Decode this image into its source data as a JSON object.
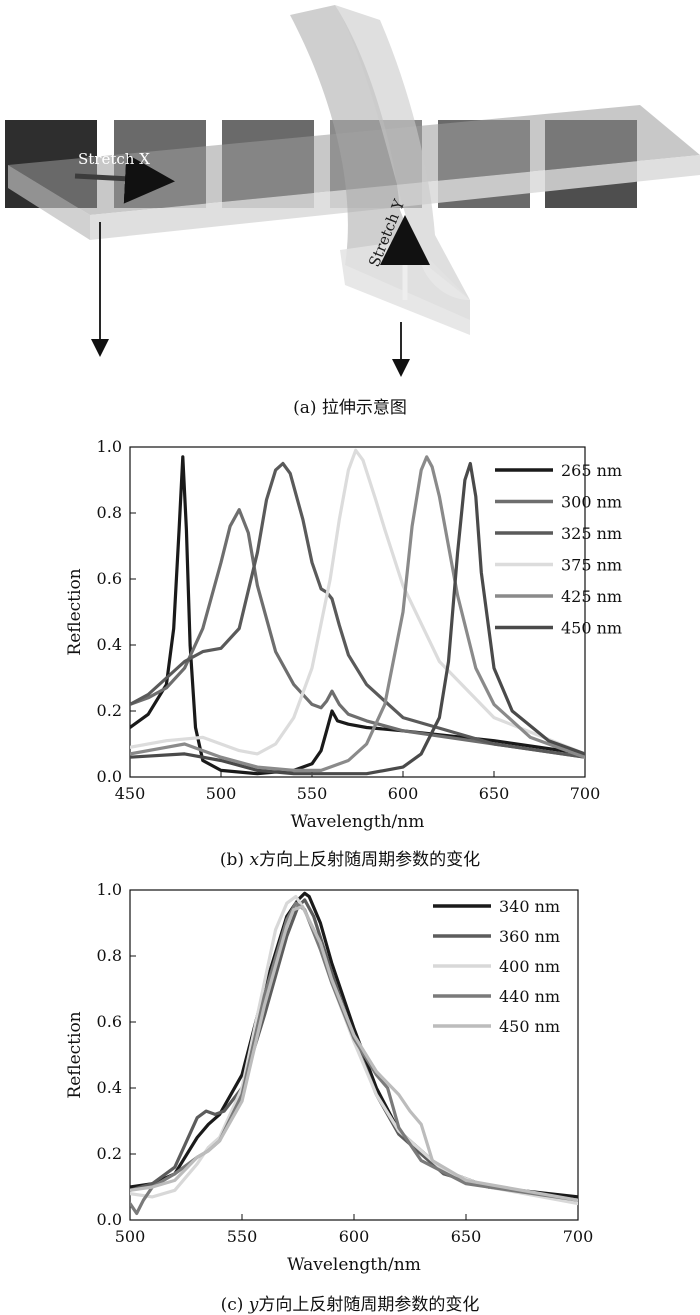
{
  "figure_a": {
    "label_x": "Stretch X",
    "label_y": "Stretch Y",
    "caption": "(a) 拉伸示意图"
  },
  "caption_b": {
    "prefix": "(b) ",
    "var": "x",
    "rest": "方向上反射随周期参数的变化"
  },
  "caption_c": {
    "prefix": "(c) ",
    "var": "y",
    "rest": "方向上反射随周期参数的变化"
  },
  "chart_data": [
    {
      "type": "line",
      "xlabel": "Wavelength/nm",
      "ylabel": "Reflection",
      "xlim": [
        450,
        700
      ],
      "ylim": [
        0,
        1.0
      ],
      "xticks": [
        450,
        500,
        550,
        600,
        650,
        700
      ],
      "yticks": [
        0.0,
        0.2,
        0.4,
        0.6,
        0.8,
        1.0
      ],
      "legend_position": "top-right",
      "series": [
        {
          "name": "265 nm",
          "color": "#1a1a1a",
          "x": [
            450,
            460,
            470,
            474,
            477,
            479,
            481,
            483,
            486,
            490,
            500,
            520,
            540,
            550,
            555,
            558,
            561,
            564,
            570,
            580,
            600,
            650,
            700
          ],
          "y": [
            0.15,
            0.19,
            0.28,
            0.45,
            0.75,
            0.97,
            0.75,
            0.4,
            0.15,
            0.05,
            0.02,
            0.01,
            0.02,
            0.04,
            0.08,
            0.14,
            0.2,
            0.17,
            0.16,
            0.15,
            0.14,
            0.11,
            0.07
          ]
        },
        {
          "name": "300 nm",
          "color": "#6e6e6e",
          "x": [
            450,
            460,
            470,
            480,
            490,
            500,
            505,
            510,
            515,
            520,
            530,
            540,
            550,
            555,
            558,
            561,
            565,
            570,
            580,
            600,
            650,
            700
          ],
          "y": [
            0.22,
            0.24,
            0.27,
            0.33,
            0.45,
            0.65,
            0.76,
            0.81,
            0.74,
            0.58,
            0.38,
            0.28,
            0.22,
            0.21,
            0.23,
            0.26,
            0.22,
            0.19,
            0.17,
            0.14,
            0.1,
            0.06
          ]
        },
        {
          "name": "325 nm",
          "color": "#5a5a5a",
          "x": [
            450,
            460,
            470,
            480,
            490,
            500,
            510,
            520,
            525,
            530,
            534,
            538,
            545,
            550,
            555,
            558,
            561,
            565,
            570,
            580,
            600,
            650,
            700
          ],
          "y": [
            0.22,
            0.25,
            0.3,
            0.35,
            0.38,
            0.39,
            0.45,
            0.68,
            0.84,
            0.93,
            0.95,
            0.92,
            0.78,
            0.65,
            0.57,
            0.56,
            0.54,
            0.46,
            0.37,
            0.28,
            0.18,
            0.1,
            0.06
          ]
        },
        {
          "name": "375 nm",
          "color": "#dcdcdc",
          "x": [
            450,
            470,
            490,
            500,
            510,
            520,
            530,
            540,
            550,
            560,
            565,
            570,
            574,
            578,
            585,
            590,
            600,
            620,
            650,
            700
          ],
          "y": [
            0.09,
            0.11,
            0.12,
            0.1,
            0.08,
            0.07,
            0.1,
            0.18,
            0.33,
            0.6,
            0.78,
            0.93,
            0.99,
            0.96,
            0.84,
            0.75,
            0.58,
            0.35,
            0.18,
            0.07
          ]
        },
        {
          "name": "425 nm",
          "color": "#8a8a8a",
          "x": [
            450,
            470,
            480,
            500,
            520,
            540,
            555,
            560,
            570,
            580,
            590,
            600,
            605,
            610,
            613,
            616,
            620,
            630,
            640,
            650,
            670,
            700
          ],
          "y": [
            0.07,
            0.09,
            0.1,
            0.06,
            0.03,
            0.02,
            0.02,
            0.03,
            0.05,
            0.1,
            0.22,
            0.5,
            0.76,
            0.93,
            0.97,
            0.94,
            0.85,
            0.55,
            0.33,
            0.22,
            0.12,
            0.06
          ]
        },
        {
          "name": "450 nm",
          "color": "#4a4a4a",
          "x": [
            450,
            480,
            500,
            520,
            540,
            560,
            580,
            600,
            610,
            620,
            625,
            630,
            634,
            637,
            640,
            643,
            650,
            660,
            680,
            700
          ],
          "y": [
            0.06,
            0.07,
            0.05,
            0.02,
            0.01,
            0.01,
            0.01,
            0.03,
            0.07,
            0.18,
            0.35,
            0.68,
            0.9,
            0.95,
            0.85,
            0.62,
            0.33,
            0.2,
            0.11,
            0.07
          ]
        }
      ]
    },
    {
      "type": "line",
      "xlabel": "Wavelength/nm",
      "ylabel": "Reflection",
      "xlim": [
        500,
        700
      ],
      "ylim": [
        0,
        1.0
      ],
      "xticks": [
        500,
        550,
        600,
        650,
        700
      ],
      "yticks": [
        0.0,
        0.2,
        0.4,
        0.6,
        0.8,
        1.0
      ],
      "legend_position": "top-right",
      "series": [
        {
          "name": "340 nm",
          "color": "#1a1a1a",
          "x": [
            500,
            510,
            520,
            530,
            535,
            540,
            550,
            560,
            570,
            575,
            578,
            580,
            585,
            590,
            600,
            610,
            620,
            640,
            660,
            700
          ],
          "y": [
            0.1,
            0.11,
            0.14,
            0.25,
            0.29,
            0.32,
            0.44,
            0.7,
            0.92,
            0.97,
            0.99,
            0.98,
            0.9,
            0.78,
            0.58,
            0.4,
            0.27,
            0.15,
            0.1,
            0.07
          ]
        },
        {
          "name": "360 nm",
          "color": "#5c5c5c",
          "x": [
            500,
            510,
            520,
            530,
            534,
            538,
            542,
            550,
            560,
            570,
            575,
            578,
            582,
            590,
            600,
            610,
            620,
            640,
            660,
            700
          ],
          "y": [
            0.09,
            0.11,
            0.16,
            0.31,
            0.33,
            0.32,
            0.33,
            0.4,
            0.62,
            0.86,
            0.95,
            0.97,
            0.92,
            0.75,
            0.55,
            0.38,
            0.26,
            0.14,
            0.1,
            0.06
          ]
        },
        {
          "name": "400 nm",
          "color": "#d8d8d8",
          "x": [
            500,
            510,
            520,
            530,
            535,
            540,
            550,
            560,
            565,
            570,
            574,
            578,
            585,
            590,
            600,
            610,
            620,
            640,
            660,
            700
          ],
          "y": [
            0.08,
            0.07,
            0.09,
            0.17,
            0.22,
            0.25,
            0.4,
            0.72,
            0.88,
            0.96,
            0.98,
            0.94,
            0.82,
            0.72,
            0.54,
            0.38,
            0.27,
            0.15,
            0.1,
            0.05
          ]
        },
        {
          "name": "440 nm",
          "color": "#7a7a7a",
          "x": [
            500,
            503,
            506,
            510,
            520,
            530,
            535,
            540,
            550,
            560,
            570,
            574,
            578,
            585,
            590,
            600,
            610,
            615,
            620,
            630,
            650,
            700
          ],
          "y": [
            0.05,
            0.02,
            0.06,
            0.1,
            0.14,
            0.19,
            0.21,
            0.24,
            0.38,
            0.68,
            0.91,
            0.96,
            0.94,
            0.82,
            0.72,
            0.55,
            0.44,
            0.4,
            0.28,
            0.18,
            0.11,
            0.06
          ]
        },
        {
          "name": "450 nm",
          "color": "#bcbcbc",
          "x": [
            500,
            510,
            520,
            530,
            535,
            540,
            550,
            560,
            570,
            573,
            577,
            585,
            590,
            600,
            610,
            620,
            625,
            630,
            635,
            650,
            700
          ],
          "y": [
            0.09,
            0.1,
            0.12,
            0.19,
            0.21,
            0.24,
            0.36,
            0.65,
            0.89,
            0.94,
            0.95,
            0.84,
            0.73,
            0.56,
            0.45,
            0.38,
            0.33,
            0.29,
            0.18,
            0.12,
            0.06
          ]
        }
      ]
    }
  ]
}
